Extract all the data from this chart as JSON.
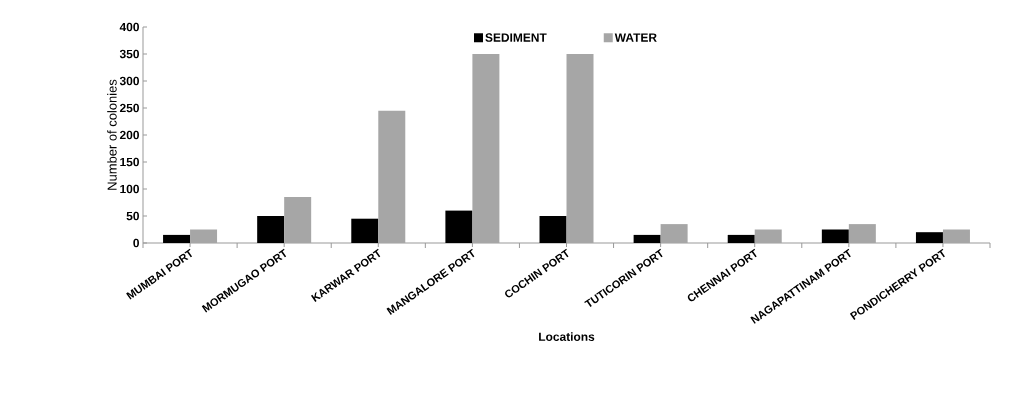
{
  "chart_data": {
    "type": "bar",
    "xlabel": "Locations",
    "ylabel": "Number of colonies",
    "categories": [
      "MUMBAI PORT",
      "MORMUGAO PORT",
      "KARWAR PORT",
      "MANGALORE PORT",
      "COCHIN PORT",
      "TUTICORIN PORT",
      "CHENNAI PORT",
      "NAGAPATTINAM PORT",
      "PONDICHERRY PORT"
    ],
    "series": [
      {
        "name": "SEDIMENT",
        "color": "#000000",
        "values": [
          15,
          50,
          45,
          60,
          50,
          15,
          15,
          25,
          20
        ]
      },
      {
        "name": "WATER",
        "color": "#a6a6a6",
        "values": [
          25,
          85,
          245,
          350,
          350,
          35,
          25,
          35,
          25
        ]
      }
    ],
    "ylim": [
      0,
      400
    ],
    "yticks": [
      0,
      50,
      100,
      150,
      200,
      250,
      300,
      350,
      400
    ],
    "grid": false,
    "legend": "top"
  }
}
